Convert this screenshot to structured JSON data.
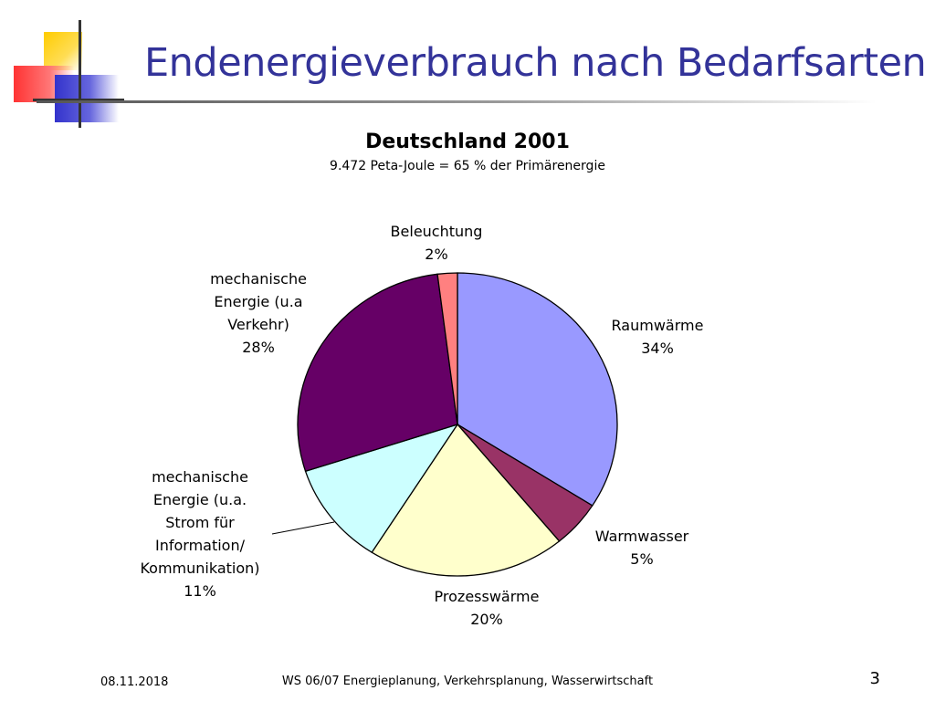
{
  "slide": {
    "title": "Endenergieverbrauch nach Bedarfsarten",
    "footer_date": "08.11.2018",
    "footer_text": "WS 06/07 Energieplanung, Verkehrsplanung, Wasserwirtschaft",
    "page_number": "3"
  },
  "colors": {
    "title": "#333399",
    "logo_yellow": "#ffcc00",
    "logo_red": "#ff3333",
    "logo_blue": "#3333cc"
  },
  "chart_data": {
    "type": "pie",
    "title": "Deutschland 2001",
    "subtitle": "9.472 Peta-Joule = 65 % der Primärenergie",
    "start": "12 o'clock",
    "direction": "clockwise",
    "slices": [
      {
        "label": [
          "Raumwärme"
        ],
        "value": 34,
        "value_label": "34%",
        "color": "#9999ff"
      },
      {
        "label": [
          "Warmwasser"
        ],
        "value": 5,
        "value_label": "5%",
        "color": "#993366"
      },
      {
        "label": [
          "Prozesswärme"
        ],
        "value": 20,
        "value_label": "20%",
        "color": "#ffffcc"
      },
      {
        "label": [
          "mechanische",
          "Energie (u.a.",
          "Strom für",
          "Information/",
          "Kommunikation)"
        ],
        "value": 11,
        "value_label": "11%",
        "color": "#ccffff"
      },
      {
        "label": [
          "mechanische",
          "Energie (u.a",
          "Verkehr)"
        ],
        "value": 28,
        "value_label": "28%",
        "color": "#660066"
      },
      {
        "label": [
          "Beleuchtung"
        ],
        "value": 2,
        "value_label": "2%",
        "color": "#ff8080"
      }
    ]
  }
}
